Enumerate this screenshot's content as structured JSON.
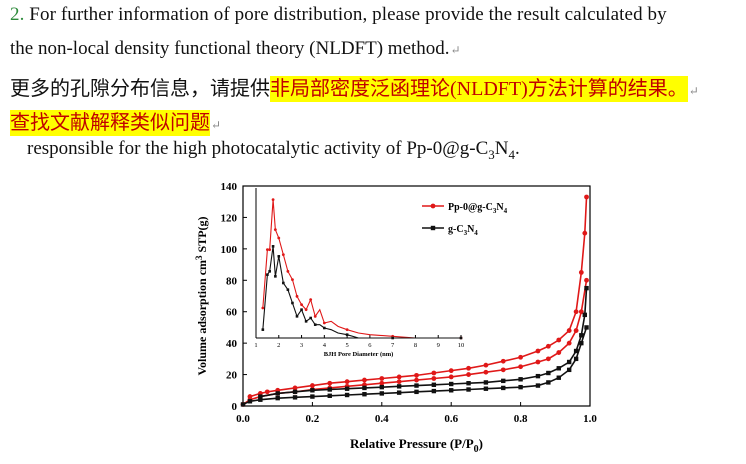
{
  "paragraph": {
    "line1_number": "2.",
    "line1_text": " For further information of pore distribution, please provide the result calculated by",
    "line2_text": "the non-local density functional theory (NLDFT) method.",
    "line3_prefix": "更多的孔隙分布信息，请提供",
    "line3_highlight": "非局部密度泛函理论(NLDFT)方法计算的结果。",
    "line4_highlight": "查找文献解释类似问题",
    "line5_text_a": "responsible for the high photocatalytic activity of Pp-0@g-C",
    "line5_sub1": "3",
    "line5_text_b": "N",
    "line5_sub2": "4",
    "line5_text_c": ".",
    "paragraph_mark": "↵"
  },
  "chart_data": {
    "type": "line",
    "main": {
      "xlabel": "Relative Pressure (P/P0)",
      "ylabel": "Volume adsorption cm3 STP(g)",
      "xlim": [
        0.0,
        1.0
      ],
      "ylim": [
        0,
        140
      ],
      "xticks": [
        "0.0",
        "0.2",
        "0.4",
        "0.6",
        "0.8",
        "1.0"
      ],
      "yticks": [
        "0",
        "20",
        "40",
        "60",
        "80",
        "100",
        "120",
        "140"
      ],
      "series": [
        {
          "name": "Pp-0@g-C3N4",
          "color": "#e01818",
          "marker": "circle",
          "adsorption_x": [
            0.0,
            0.02,
            0.05,
            0.1,
            0.15,
            0.2,
            0.25,
            0.3,
            0.35,
            0.4,
            0.45,
            0.5,
            0.55,
            0.6,
            0.65,
            0.7,
            0.75,
            0.8,
            0.85,
            0.88,
            0.91,
            0.94,
            0.96,
            0.975,
            0.99
          ],
          "adsorption_y": [
            1,
            4,
            6,
            8,
            9,
            10.5,
            11.5,
            12.5,
            13.5,
            14.5,
            15.5,
            16.5,
            17.5,
            18.5,
            20,
            21.5,
            23,
            25,
            28,
            30,
            34,
            40,
            48,
            60,
            80
          ],
          "desorption_x": [
            0.99,
            0.985,
            0.975,
            0.96,
            0.94,
            0.91,
            0.88,
            0.85,
            0.8,
            0.75,
            0.7,
            0.65,
            0.6,
            0.55,
            0.5,
            0.45,
            0.4,
            0.35,
            0.3,
            0.25,
            0.2,
            0.15,
            0.1,
            0.07,
            0.05,
            0.02
          ],
          "desorption_y": [
            133,
            110,
            85,
            60,
            48,
            42,
            38,
            35,
            31,
            28.5,
            26,
            24,
            22.5,
            21,
            19.5,
            18.5,
            17.5,
            16.5,
            15.5,
            14.5,
            13,
            11.5,
            10,
            9,
            8,
            6
          ]
        },
        {
          "name": "g-C3N4",
          "color": "#111111",
          "marker": "square",
          "adsorption_x": [
            0.0,
            0.02,
            0.05,
            0.1,
            0.15,
            0.2,
            0.25,
            0.3,
            0.35,
            0.4,
            0.45,
            0.5,
            0.55,
            0.6,
            0.65,
            0.7,
            0.75,
            0.8,
            0.85,
            0.88,
            0.91,
            0.94,
            0.96,
            0.975,
            0.99
          ],
          "adsorption_y": [
            1,
            3,
            4,
            5,
            5.5,
            6,
            6.5,
            7,
            7.5,
            8,
            8.5,
            9,
            9.5,
            10,
            10.5,
            11,
            11.5,
            12,
            13,
            15,
            18,
            23,
            30,
            40,
            50
          ],
          "desorption_x": [
            0.99,
            0.985,
            0.975,
            0.96,
            0.94,
            0.91,
            0.88,
            0.85,
            0.8,
            0.75,
            0.7,
            0.65,
            0.6,
            0.55,
            0.5,
            0.45,
            0.4,
            0.35,
            0.3,
            0.25,
            0.2,
            0.15,
            0.1,
            0.05
          ],
          "desorption_y": [
            75,
            58,
            45,
            35,
            28,
            24,
            21,
            19,
            17,
            16,
            15,
            14.5,
            14,
            13.5,
            13,
            12.5,
            12,
            11.5,
            11,
            10.5,
            10,
            9,
            8,
            6
          ]
        }
      ]
    },
    "inset": {
      "xlabel": "BJH Pore Diameter (nm)",
      "xlim": [
        1,
        10
      ],
      "ylim": [
        55,
        145
      ],
      "xticks": [
        "1",
        "2",
        "3",
        "4",
        "5",
        "6",
        "7",
        "8",
        "9",
        "10"
      ],
      "series": [
        {
          "name": "Pp-0@g-C3N4",
          "x": [
            1.3,
            1.5,
            1.6,
            1.75,
            1.85,
            2.0,
            2.2,
            2.4,
            2.6,
            2.8,
            3.0,
            3.2,
            3.4,
            3.6,
            3.8,
            4.0,
            4.3,
            4.6,
            5.0,
            5.5,
            6.0,
            7.0,
            8.0,
            9.0,
            10.0
          ],
          "y": [
            73,
            108,
            108,
            138,
            120,
            115,
            105,
            95,
            90,
            80,
            75,
            72,
            78,
            68,
            72,
            64,
            65,
            62,
            60,
            58,
            57,
            56,
            55,
            55,
            55
          ]
        },
        {
          "name": "g-C3N4",
          "x": [
            1.3,
            1.5,
            1.6,
            1.75,
            1.85,
            2.0,
            2.2,
            2.4,
            2.6,
            2.8,
            3.0,
            3.2,
            3.4,
            3.6,
            3.8,
            4.0,
            4.3,
            4.6,
            5.0,
            5.5,
            6.0,
            7.0,
            8.0,
            9.0,
            10.0
          ],
          "y": [
            60,
            93,
            95,
            110,
            92,
            104,
            88,
            84,
            76,
            68,
            72,
            65,
            67,
            63,
            63,
            61,
            60,
            58,
            57,
            55,
            55,
            55,
            55,
            55,
            55
          ]
        }
      ]
    },
    "legend": {
      "placement": "top-right inside plot",
      "entries": [
        "Pp-0@g-C3N4",
        "g-C3N4"
      ]
    }
  }
}
